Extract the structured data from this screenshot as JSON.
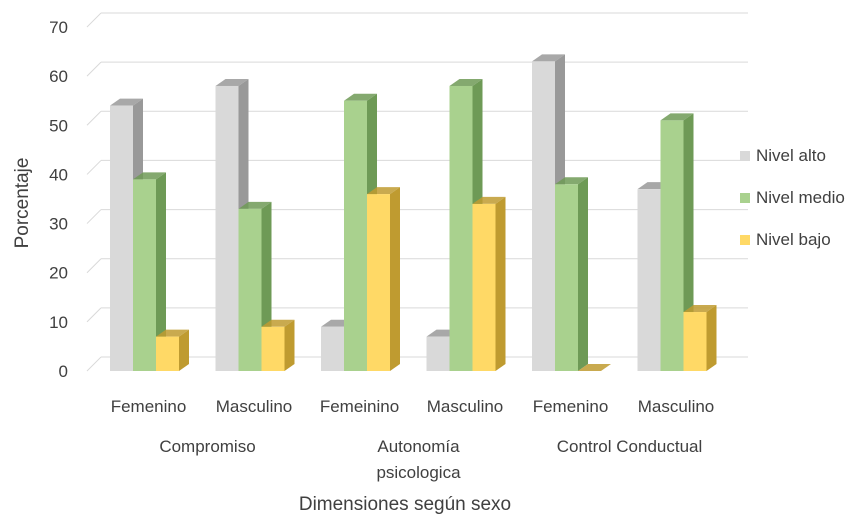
{
  "chart_data": {
    "type": "bar",
    "title": "",
    "xlabel": "Dimensiones según sexo",
    "ylabel": "Porcentaje",
    "ylim": [
      0,
      70
    ],
    "yticks": [
      0,
      10,
      20,
      30,
      40,
      50,
      60,
      70
    ],
    "grid": true,
    "legend_position": "right",
    "groups": [
      {
        "label_lines": [
          "Compromiso"
        ]
      },
      {
        "label_lines": [
          "Autonomía",
          "psicologica"
        ]
      },
      {
        "label_lines": [
          "Control Conductual"
        ]
      }
    ],
    "categories": [
      "Femenino",
      "Masculino",
      "Femeinino",
      "Masculino",
      "Femenino",
      "Masculino"
    ],
    "series": [
      {
        "name": "Nivel alto",
        "color": "#d9d9d9",
        "shade": "#999999",
        "values": [
          54,
          58,
          9,
          7,
          63,
          37
        ]
      },
      {
        "name": "Nivel medio",
        "color": "#a9d18e",
        "shade": "#6e9a56",
        "values": [
          39,
          33,
          55,
          58,
          38,
          51
        ]
      },
      {
        "name": "Nivel bajo",
        "color": "#ffd966",
        "shade": "#bf9b30",
        "values": [
          7,
          9,
          36,
          34,
          0,
          12
        ]
      }
    ]
  }
}
